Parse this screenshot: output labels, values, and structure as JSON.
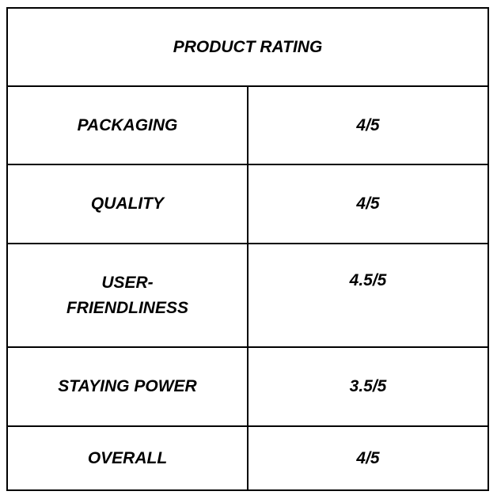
{
  "table": {
    "title": "PRODUCT RATING",
    "rows": [
      [
        "PACKAGING",
        "4/5"
      ],
      [
        "QUALITY",
        "4/5"
      ],
      [
        "USER-FRIENDLINESS",
        "4.5/5"
      ],
      [
        "STAYING POWER",
        "3.5/5"
      ],
      [
        "OVERALL",
        "4/5"
      ]
    ]
  }
}
